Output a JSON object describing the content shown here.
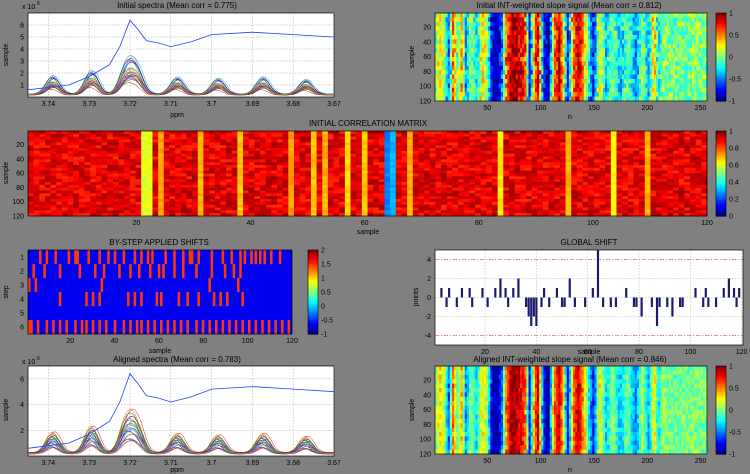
{
  "window": {
    "background": "#808080"
  },
  "chart_data": [
    {
      "type": "line",
      "title": "Initial spectra (Mean corr = 0.775)",
      "xlabel": "ppm",
      "ylabel": "sample",
      "y_multiplier": "x 10",
      "y_exponent": "6",
      "x_reversed": true,
      "xlim": [
        3.67,
        3.745
      ],
      "ylim": [
        0,
        7
      ],
      "xticks": [
        "3.74",
        "3.73",
        "3.72",
        "3.71",
        "3.7",
        "3.69",
        "3.68",
        "3.67"
      ],
      "yticks": [
        "1",
        "2",
        "3",
        "4",
        "5",
        "6"
      ],
      "grid": true,
      "peaks_ppm": [
        3.739,
        3.7295,
        3.721,
        3.7185,
        3.7085,
        3.6985,
        3.6875,
        3.677
      ],
      "highlight_series": {
        "name": "",
        "color": "#1f3fff",
        "x": [
          3.745,
          3.74,
          3.735,
          3.73,
          3.725,
          3.7225,
          3.72,
          3.718,
          3.716,
          3.713,
          3.71,
          3.705,
          3.7,
          3.69,
          3.68,
          3.67
        ],
        "y": [
          0.6,
          0.8,
          1.0,
          1.7,
          2.7,
          4.2,
          6.4,
          5.6,
          4.7,
          4.5,
          4.2,
          4.6,
          5.2,
          5.4,
          5.2,
          5.0
        ]
      },
      "typical_peak_heights": [
        1.4,
        1.8,
        2.1,
        1.9,
        1.3,
        1.2,
        1.3,
        1.1
      ]
    },
    {
      "type": "heatmap",
      "title": "Initial INT-weighted slope signal (Mean corr = 0.812)",
      "xlabel": "n",
      "ylabel": "sample",
      "xlim": [
        1,
        256
      ],
      "ylim": [
        1,
        120
      ],
      "xticks": [
        "50",
        "100",
        "150",
        "200",
        "250"
      ],
      "yticks": [
        "20",
        "40",
        "60",
        "80",
        "100",
        "120"
      ],
      "colorbar_ticks": [
        "1",
        "0.5",
        "0",
        "-0.5",
        "-1"
      ],
      "clim": [
        -1,
        1
      ],
      "column_profile": [
        {
          "n": 1,
          "v": -0.05
        },
        {
          "n": 5,
          "v": 0.35
        },
        {
          "n": 10,
          "v": 0.05
        },
        {
          "n": 14,
          "v": -0.6
        },
        {
          "n": 18,
          "v": 0.6
        },
        {
          "n": 22,
          "v": -0.1
        },
        {
          "n": 26,
          "v": 0.45
        },
        {
          "n": 30,
          "v": -0.5
        },
        {
          "n": 35,
          "v": 0.1
        },
        {
          "n": 40,
          "v": -0.35
        },
        {
          "n": 45,
          "v": 0.3
        },
        {
          "n": 50,
          "v": 0.05
        },
        {
          "n": 55,
          "v": -0.9
        },
        {
          "n": 60,
          "v": -0.95
        },
        {
          "n": 64,
          "v": -0.55
        },
        {
          "n": 68,
          "v": 0.55
        },
        {
          "n": 73,
          "v": 0.95
        },
        {
          "n": 78,
          "v": 0.9
        },
        {
          "n": 82,
          "v": 0.75
        },
        {
          "n": 86,
          "v": 0.6
        },
        {
          "n": 90,
          "v": -0.85
        },
        {
          "n": 94,
          "v": 0.4
        },
        {
          "n": 98,
          "v": 0.9
        },
        {
          "n": 103,
          "v": -0.7
        },
        {
          "n": 108,
          "v": -0.95
        },
        {
          "n": 113,
          "v": 0.5
        },
        {
          "n": 118,
          "v": 0.9
        },
        {
          "n": 122,
          "v": 0.25
        },
        {
          "n": 126,
          "v": -0.85
        },
        {
          "n": 131,
          "v": 0.55
        },
        {
          "n": 136,
          "v": 0.9
        },
        {
          "n": 141,
          "v": 0.4
        },
        {
          "n": 146,
          "v": -0.3
        },
        {
          "n": 150,
          "v": -0.75
        },
        {
          "n": 156,
          "v": 0.3
        },
        {
          "n": 162,
          "v": -0.35
        },
        {
          "n": 168,
          "v": 0.05
        },
        {
          "n": 175,
          "v": -0.4
        },
        {
          "n": 182,
          "v": 0.0
        },
        {
          "n": 190,
          "v": -0.5
        },
        {
          "n": 196,
          "v": 0.1
        },
        {
          "n": 202,
          "v": -0.45
        },
        {
          "n": 207,
          "v": 0.35
        },
        {
          "n": 211,
          "v": -0.3
        },
        {
          "n": 215,
          "v": 0.05
        },
        {
          "n": 225,
          "v": -0.05
        },
        {
          "n": 240,
          "v": 0.0
        },
        {
          "n": 256,
          "v": 0.0
        }
      ]
    },
    {
      "type": "heatmap",
      "title": "INITIAL CORRELATION MATRIX",
      "xlabel": "sample",
      "ylabel": "sample",
      "xlim": [
        1,
        120
      ],
      "ylim": [
        1,
        120
      ],
      "xticks": [
        "20",
        "40",
        "60",
        "80",
        "100",
        "120"
      ],
      "yticks": [
        "20",
        "40",
        "60",
        "80",
        "100",
        "120"
      ],
      "colorbar_ticks": [
        "1",
        "0.8",
        "0.6",
        "0.4",
        "0.2",
        "0"
      ],
      "clim": [
        0,
        1
      ],
      "typical_value": 0.9,
      "low_columns": [
        {
          "sample": 21,
          "value": 0.6
        },
        {
          "sample": 22,
          "value": 0.6
        },
        {
          "sample": 24,
          "value": 0.72
        },
        {
          "sample": 31,
          "value": 0.7
        },
        {
          "sample": 38,
          "value": 0.68
        },
        {
          "sample": 47,
          "value": 0.72
        },
        {
          "sample": 51,
          "value": 0.68
        },
        {
          "sample": 53,
          "value": 0.7
        },
        {
          "sample": 57,
          "value": 0.66
        },
        {
          "sample": 60,
          "value": 0.68
        },
        {
          "sample": 64,
          "value": 0.25
        },
        {
          "sample": 65,
          "value": 0.3
        },
        {
          "sample": 68,
          "value": 0.7
        },
        {
          "sample": 84,
          "value": 0.65
        },
        {
          "sample": 96,
          "value": 0.7
        },
        {
          "sample": 104,
          "value": 0.62
        },
        {
          "sample": 110,
          "value": 0.7
        }
      ]
    },
    {
      "type": "heatmap",
      "title": "BY-STEP APPLIED SHIFTS",
      "xlabel": "sample",
      "ylabel": "step",
      "xlim": [
        1,
        120
      ],
      "ylim": [
        1,
        6
      ],
      "xticks": [
        "20",
        "40",
        "60",
        "80",
        "100",
        "120"
      ],
      "yticks": [
        "1",
        "2",
        "3",
        "4",
        "5",
        "6"
      ],
      "colorbar_ticks": [
        "2",
        "1.5",
        "1",
        "0.5",
        "0",
        "-0.5",
        "-1"
      ],
      "clim": [
        -1,
        2
      ],
      "row_shift_samples": [
        [
          6,
          9,
          13,
          19,
          22,
          23,
          28,
          33,
          37,
          40,
          44,
          49,
          52,
          55,
          57,
          63,
          67,
          71,
          74,
          75,
          78,
          84,
          89,
          93,
          97,
          99,
          102,
          104,
          106,
          108,
          111,
          115
        ],
        [
          3,
          8,
          15,
          24,
          31,
          35,
          42,
          47,
          51,
          56,
          60,
          62,
          67,
          71,
          77,
          84,
          90,
          94,
          97
        ],
        [
          1,
          4,
          34,
          83,
          96
        ],
        [
          15,
          27,
          30,
          33,
          46,
          49,
          52,
          59,
          61,
          69,
          73,
          78,
          85,
          88,
          91,
          98
        ],
        [],
        [
          1,
          2,
          5,
          9,
          12,
          15,
          18,
          22,
          25,
          27,
          30,
          33,
          36,
          40,
          44,
          47,
          50,
          52,
          55,
          58,
          61,
          64,
          67,
          70,
          73,
          77,
          80,
          83,
          86,
          89,
          92,
          95,
          98,
          101,
          104,
          107,
          110,
          113,
          116,
          119
        ]
      ]
    },
    {
      "type": "bar",
      "title": "GLOBAL SHIFT",
      "xlabel": "sample",
      "ylabel": "points",
      "xlim": [
        1,
        120
      ],
      "ylim": [
        -5,
        5
      ],
      "xticks": [
        "20",
        "40",
        "60",
        "80",
        "100",
        "120"
      ],
      "yticks": [
        "4",
        "2",
        "0",
        "-2",
        "-4"
      ],
      "reference_lines": [
        4,
        -4
      ],
      "values": [
        0,
        0,
        1,
        0,
        -1,
        1,
        0,
        0,
        -1,
        0,
        1,
        0,
        0,
        1,
        -1,
        0,
        0,
        0,
        1,
        0,
        -1,
        0,
        0,
        1,
        0,
        2,
        0,
        1,
        -1,
        0,
        1,
        0,
        2,
        0,
        0,
        -1,
        -2,
        -3,
        -2,
        -3,
        0,
        -1,
        1,
        0,
        -1,
        0,
        0,
        1,
        0,
        -1,
        -1,
        0,
        2,
        0,
        -1,
        0,
        0,
        0,
        -1,
        0,
        0,
        1,
        0,
        5,
        0,
        -1,
        0,
        0,
        -1,
        0,
        -1,
        0,
        0,
        0,
        1,
        0,
        0,
        -1,
        -1,
        0,
        -2,
        0,
        0,
        0,
        -1,
        0,
        -3,
        -1,
        0,
        0,
        -1,
        0,
        -2,
        0,
        0,
        -1,
        -1,
        0,
        0,
        0,
        0,
        1,
        0,
        0,
        -1,
        1,
        -1,
        0,
        0,
        -1,
        0,
        0,
        1,
        0,
        2,
        0,
        1,
        -1,
        1,
        0
      ]
    },
    {
      "type": "line",
      "title": "Aligned spectra (Mean corr = 0.783)",
      "xlabel": "ppm",
      "ylabel": "sample",
      "y_multiplier": "x 10",
      "y_exponent": "6",
      "x_reversed": true,
      "xlim": [
        3.67,
        3.745
      ],
      "ylim": [
        0,
        7
      ],
      "xticks": [
        "3.74",
        "3.73",
        "3.72",
        "3.71",
        "3.7",
        "3.69",
        "3.68",
        "3.67"
      ],
      "yticks": [
        "2",
        "4",
        "6"
      ],
      "grid": true,
      "peaks_ppm": [
        3.739,
        3.7295,
        3.721,
        3.7185,
        3.7085,
        3.6985,
        3.6875,
        3.677
      ],
      "highlight_series": {
        "name": "",
        "color": "#1f3fff",
        "x": [
          3.745,
          3.74,
          3.735,
          3.73,
          3.725,
          3.7225,
          3.72,
          3.718,
          3.716,
          3.713,
          3.71,
          3.705,
          3.7,
          3.69,
          3.68,
          3.67
        ],
        "y": [
          0.6,
          0.8,
          1.0,
          1.7,
          2.7,
          4.2,
          6.4,
          5.6,
          4.7,
          4.5,
          4.2,
          4.6,
          5.2,
          5.4,
          5.2,
          5.0
        ]
      },
      "typical_peak_heights": [
        1.4,
        1.8,
        2.1,
        1.9,
        1.3,
        1.2,
        1.3,
        1.1
      ]
    },
    {
      "type": "heatmap",
      "title": "Aligned INT-weighted slope signal (Mean corr = 0.846)",
      "xlabel": "n",
      "ylabel": "sample",
      "xlim": [
        1,
        256
      ],
      "ylim": [
        1,
        120
      ],
      "xticks": [
        "50",
        "100",
        "150",
        "200",
        "250"
      ],
      "yticks": [
        "20",
        "40",
        "60",
        "80",
        "100",
        "120"
      ],
      "colorbar_ticks": [
        "1",
        "0.5",
        "0",
        "-0.5",
        "-1"
      ],
      "clim": [
        -1,
        1
      ],
      "column_profile": [
        {
          "n": 1,
          "v": -0.05
        },
        {
          "n": 5,
          "v": 0.35
        },
        {
          "n": 10,
          "v": 0.05
        },
        {
          "n": 14,
          "v": -0.6
        },
        {
          "n": 18,
          "v": 0.6
        },
        {
          "n": 22,
          "v": -0.1
        },
        {
          "n": 26,
          "v": 0.45
        },
        {
          "n": 30,
          "v": -0.5
        },
        {
          "n": 35,
          "v": 0.1
        },
        {
          "n": 40,
          "v": -0.35
        },
        {
          "n": 45,
          "v": 0.3
        },
        {
          "n": 50,
          "v": 0.05
        },
        {
          "n": 55,
          "v": -0.9
        },
        {
          "n": 60,
          "v": -0.95
        },
        {
          "n": 64,
          "v": -0.55
        },
        {
          "n": 68,
          "v": 0.55
        },
        {
          "n": 73,
          "v": 0.95
        },
        {
          "n": 78,
          "v": 0.9
        },
        {
          "n": 82,
          "v": 0.75
        },
        {
          "n": 86,
          "v": 0.6
        },
        {
          "n": 90,
          "v": -0.85
        },
        {
          "n": 94,
          "v": 0.4
        },
        {
          "n": 98,
          "v": 0.9
        },
        {
          "n": 103,
          "v": -0.7
        },
        {
          "n": 108,
          "v": -0.95
        },
        {
          "n": 113,
          "v": 0.5
        },
        {
          "n": 118,
          "v": 0.9
        },
        {
          "n": 122,
          "v": 0.25
        },
        {
          "n": 126,
          "v": -0.85
        },
        {
          "n": 131,
          "v": 0.55
        },
        {
          "n": 136,
          "v": 0.9
        },
        {
          "n": 141,
          "v": 0.4
        },
        {
          "n": 146,
          "v": -0.3
        },
        {
          "n": 150,
          "v": -0.75
        },
        {
          "n": 156,
          "v": 0.3
        },
        {
          "n": 162,
          "v": -0.35
        },
        {
          "n": 168,
          "v": 0.05
        },
        {
          "n": 175,
          "v": -0.4
        },
        {
          "n": 182,
          "v": 0.0
        },
        {
          "n": 190,
          "v": -0.5
        },
        {
          "n": 196,
          "v": 0.1
        },
        {
          "n": 202,
          "v": -0.45
        },
        {
          "n": 207,
          "v": 0.35
        },
        {
          "n": 211,
          "v": -0.3
        },
        {
          "n": 215,
          "v": 0.05
        },
        {
          "n": 225,
          "v": -0.05
        },
        {
          "n": 240,
          "v": 0.0
        },
        {
          "n": 256,
          "v": 0.0
        }
      ]
    }
  ]
}
